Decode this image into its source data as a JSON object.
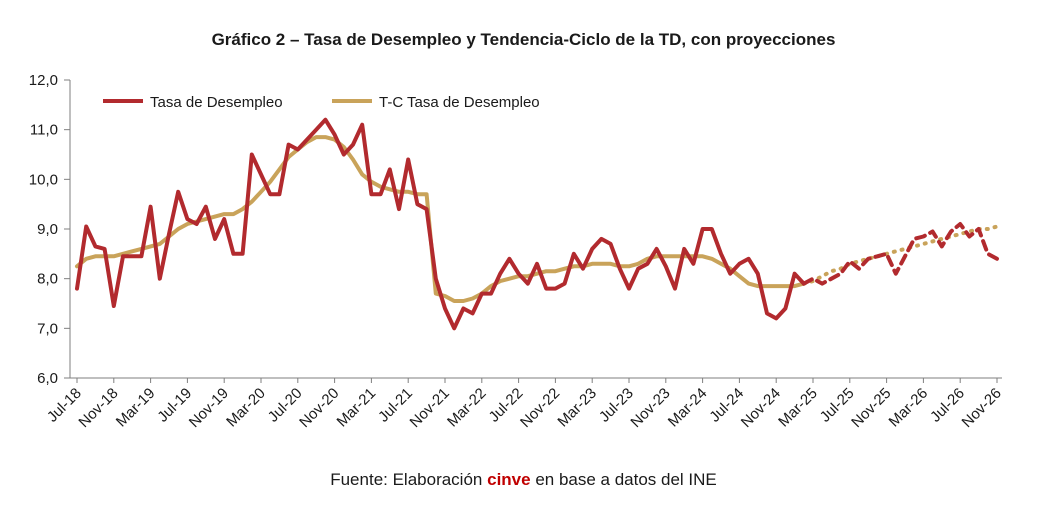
{
  "chart_data": {
    "type": "line",
    "title": "Gráfico 2 – Tasa de Desempleo y Tendencia-Ciclo de la TD, con proyecciones",
    "xlabel": "",
    "ylabel": "",
    "ylim": [
      6.0,
      12.0
    ],
    "y_ticks": [
      "6,0",
      "7,0",
      "8,0",
      "9,0",
      "10,0",
      "11,0",
      "12,0"
    ],
    "x_tick_labels": [
      "Jul-18",
      "Nov-18",
      "Mar-19",
      "Jul-19",
      "Nov-19",
      "Mar-20",
      "Jul-20",
      "Nov-20",
      "Mar-21",
      "Jul-21",
      "Nov-21",
      "Mar-22",
      "Jul-22",
      "Nov-22",
      "Mar-23",
      "Jul-23",
      "Nov-23",
      "Mar-24",
      "Jul-24",
      "Nov-24",
      "Mar-25",
      "Jul-25",
      "Nov-25",
      "Mar-26",
      "Jul-26",
      "Nov-26"
    ],
    "x_tick_step_months": 4,
    "grid": false,
    "legend_position": "top-left",
    "colors": {
      "series_1": "#b22a2e",
      "series_2": "#c9a35a",
      "axis": "#7f7f7f"
    },
    "series": [
      {
        "name": "Tasa de Desempleo",
        "style": "solid, dashed projection",
        "x_start": "Jul-18",
        "values": [
          7.8,
          9.05,
          8.65,
          8.6,
          7.45,
          8.45,
          8.45,
          8.45,
          9.45,
          8.0,
          8.9,
          9.75,
          9.2,
          9.1,
          9.45,
          8.8,
          9.2,
          8.5,
          8.5,
          10.5,
          10.1,
          9.7,
          9.7,
          10.7,
          10.6,
          10.8,
          11.0,
          11.2,
          10.9,
          10.5,
          10.7,
          11.1,
          9.7,
          9.7,
          10.2,
          9.4,
          10.4,
          9.5,
          9.4,
          8.0,
          7.4,
          7.0,
          7.4,
          7.3,
          7.7,
          7.7,
          8.1,
          8.4,
          8.1,
          7.9,
          8.3,
          7.8,
          7.8,
          7.9,
          8.5,
          8.2,
          8.6,
          8.8,
          8.7,
          8.2,
          7.8,
          8.2,
          8.3,
          8.6,
          8.25,
          7.8,
          8.6,
          8.3,
          9.0,
          9.0,
          8.5,
          8.1,
          8.3,
          8.4,
          8.1,
          7.3,
          7.2,
          7.4,
          8.1,
          7.9,
          8.0,
          7.9,
          8.0,
          8.1,
          8.35,
          8.2,
          8.4,
          8.45,
          8.5,
          8.1,
          8.45,
          8.8,
          8.85,
          8.95,
          8.65,
          8.95,
          9.1,
          8.85,
          9.0,
          8.5,
          8.4
        ],
        "projection_from_index": 79
      },
      {
        "name": "T-C Tasa de Desempleo",
        "style": "solid, dotted projection",
        "x_start": "Jul-18",
        "values": [
          8.25,
          8.4,
          8.45,
          8.45,
          8.45,
          8.5,
          8.55,
          8.6,
          8.65,
          8.7,
          8.85,
          9.0,
          9.1,
          9.15,
          9.2,
          9.25,
          9.3,
          9.3,
          9.4,
          9.55,
          9.75,
          9.95,
          10.2,
          10.45,
          10.6,
          10.75,
          10.85,
          10.85,
          10.8,
          10.65,
          10.4,
          10.1,
          9.95,
          9.85,
          9.8,
          9.75,
          9.75,
          9.7,
          9.7,
          7.7,
          7.65,
          7.55,
          7.55,
          7.6,
          7.7,
          7.85,
          7.95,
          8.0,
          8.05,
          8.05,
          8.1,
          8.15,
          8.15,
          8.2,
          8.25,
          8.25,
          8.3,
          8.3,
          8.3,
          8.25,
          8.25,
          8.3,
          8.4,
          8.45,
          8.45,
          8.45,
          8.45,
          8.45,
          8.45,
          8.4,
          8.3,
          8.2,
          8.05,
          7.9,
          7.85,
          7.85,
          7.85,
          7.85,
          7.85,
          7.9,
          7.95,
          8.05,
          8.15,
          8.2,
          8.3,
          8.35,
          8.4,
          8.45,
          8.5,
          8.55,
          8.6,
          8.65,
          8.7,
          8.75,
          8.8,
          8.85,
          8.9,
          8.95,
          9.0,
          9.0,
          9.05
        ],
        "projection_from_index": 79
      }
    ]
  },
  "source_note": {
    "prefix": "Fuente: Elaboración ",
    "brand": "cinve",
    "suffix": " en base a datos del INE"
  }
}
